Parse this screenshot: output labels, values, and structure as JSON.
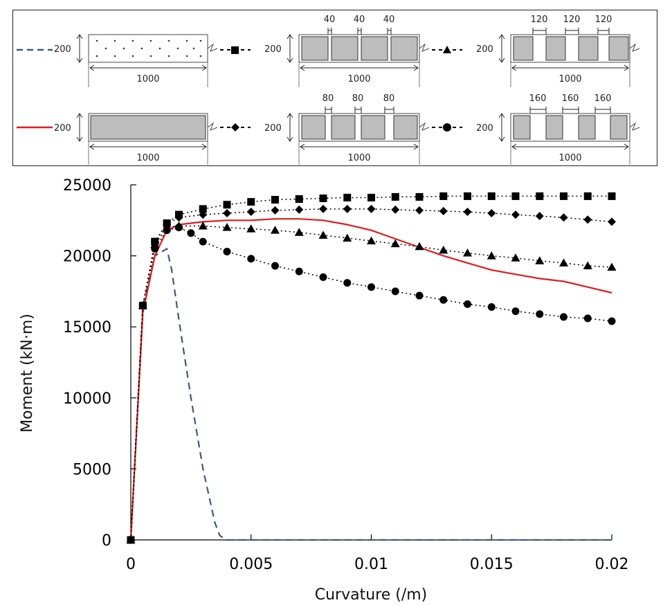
{
  "chart_data": {
    "type": "line",
    "title": "",
    "xlabel": "Curvature (/m)",
    "ylabel": "Moment (kN·m)",
    "xlim": [
      0,
      0.02
    ],
    "ylim": [
      0,
      25000
    ],
    "xticks": [
      "0",
      "0.005",
      "0.01",
      "0.015",
      "0.02"
    ],
    "yticks": [
      "0",
      "5000",
      "10000",
      "15000",
      "20000",
      "25000"
    ],
    "grid": false,
    "legend_placement": "top (cross-section diagrams)",
    "series": [
      {
        "key": "dashed",
        "style": "dashed",
        "color": "#3d5a78",
        "marker": "none",
        "x": [
          0,
          0.0005,
          0.001,
          0.0015,
          0.0017,
          0.002,
          0.0025,
          0.003,
          0.0035,
          0.0037,
          0.004,
          0.006,
          0.01,
          0.015,
          0.02
        ],
        "y": [
          0,
          16500,
          20000,
          20500,
          19000,
          15500,
          10000,
          5000,
          1200,
          300,
          0,
          0,
          0,
          0,
          0
        ]
      },
      {
        "key": "solid-red",
        "style": "solid",
        "color": "#e31a1c",
        "marker": "none",
        "x": [
          0,
          0.0005,
          0.001,
          0.0015,
          0.002,
          0.003,
          0.004,
          0.005,
          0.006,
          0.007,
          0.008,
          0.009,
          0.01,
          0.011,
          0.012,
          0.013,
          0.014,
          0.015,
          0.016,
          0.017,
          0.018,
          0.019,
          0.02
        ],
        "y": [
          0,
          16000,
          20000,
          21800,
          22200,
          22400,
          22500,
          22500,
          22600,
          22600,
          22500,
          22200,
          21800,
          21200,
          20600,
          20000,
          19500,
          19000,
          18700,
          18400,
          18200,
          17800,
          17400
        ]
      },
      {
        "key": "square",
        "style": "dotted",
        "color": "#000000",
        "marker": "square",
        "x": [
          0,
          0.0005,
          0.001,
          0.0015,
          0.002,
          0.003,
          0.004,
          0.005,
          0.006,
          0.007,
          0.008,
          0.009,
          0.01,
          0.011,
          0.012,
          0.013,
          0.014,
          0.015,
          0.016,
          0.017,
          0.018,
          0.019,
          0.02
        ],
        "y": [
          0,
          16500,
          21000,
          22300,
          22900,
          23300,
          23600,
          23800,
          23950,
          24000,
          24050,
          24100,
          24100,
          24150,
          24150,
          24200,
          24200,
          24200,
          24200,
          24200,
          24200,
          24200,
          24200
        ]
      },
      {
        "key": "diamond",
        "style": "dotted",
        "color": "#000000",
        "marker": "diamond",
        "x": [
          0,
          0.0005,
          0.001,
          0.0015,
          0.002,
          0.003,
          0.004,
          0.005,
          0.006,
          0.007,
          0.008,
          0.009,
          0.01,
          0.011,
          0.012,
          0.013,
          0.014,
          0.015,
          0.016,
          0.017,
          0.018,
          0.019,
          0.02
        ],
        "y": [
          0,
          16500,
          21000,
          22200,
          22700,
          22900,
          23000,
          23100,
          23200,
          23250,
          23300,
          23300,
          23300,
          23250,
          23200,
          23150,
          23100,
          23000,
          22900,
          22800,
          22700,
          22550,
          22400
        ]
      },
      {
        "key": "triangle",
        "style": "dotted",
        "color": "#000000",
        "marker": "triangle",
        "x": [
          0,
          0.0005,
          0.001,
          0.0015,
          0.002,
          0.003,
          0.004,
          0.005,
          0.006,
          0.007,
          0.008,
          0.009,
          0.01,
          0.011,
          0.012,
          0.013,
          0.014,
          0.015,
          0.016,
          0.017,
          0.018,
          0.019,
          0.02
        ],
        "y": [
          0,
          16500,
          20800,
          22000,
          22100,
          22100,
          22000,
          21900,
          21800,
          21650,
          21450,
          21250,
          21050,
          20850,
          20650,
          20400,
          20200,
          20000,
          19850,
          19650,
          19500,
          19300,
          19200
        ]
      },
      {
        "key": "circle",
        "style": "dotted",
        "color": "#000000",
        "marker": "circle",
        "x": [
          0,
          0.0005,
          0.001,
          0.0015,
          0.002,
          0.0025,
          0.003,
          0.004,
          0.005,
          0.006,
          0.007,
          0.008,
          0.009,
          0.01,
          0.011,
          0.012,
          0.013,
          0.014,
          0.015,
          0.016,
          0.017,
          0.018,
          0.019,
          0.02
        ],
        "y": [
          0,
          16500,
          20500,
          21800,
          22000,
          21600,
          21000,
          20300,
          19800,
          19300,
          18900,
          18500,
          18100,
          17800,
          17500,
          17200,
          16900,
          16600,
          16400,
          16100,
          15900,
          15700,
          15600,
          15400
        ]
      }
    ]
  },
  "legend": {
    "section_height": "200",
    "section_width": "1000",
    "gaps": [
      {
        "key": "g40",
        "labels": [
          "40",
          "40",
          "40"
        ]
      },
      {
        "key": "g80",
        "labels": [
          "80",
          "80",
          "80"
        ]
      },
      {
        "key": "g120",
        "labels": [
          "120",
          "120",
          "120"
        ]
      },
      {
        "key": "g160",
        "labels": [
          "160",
          "160",
          "160"
        ]
      }
    ]
  }
}
